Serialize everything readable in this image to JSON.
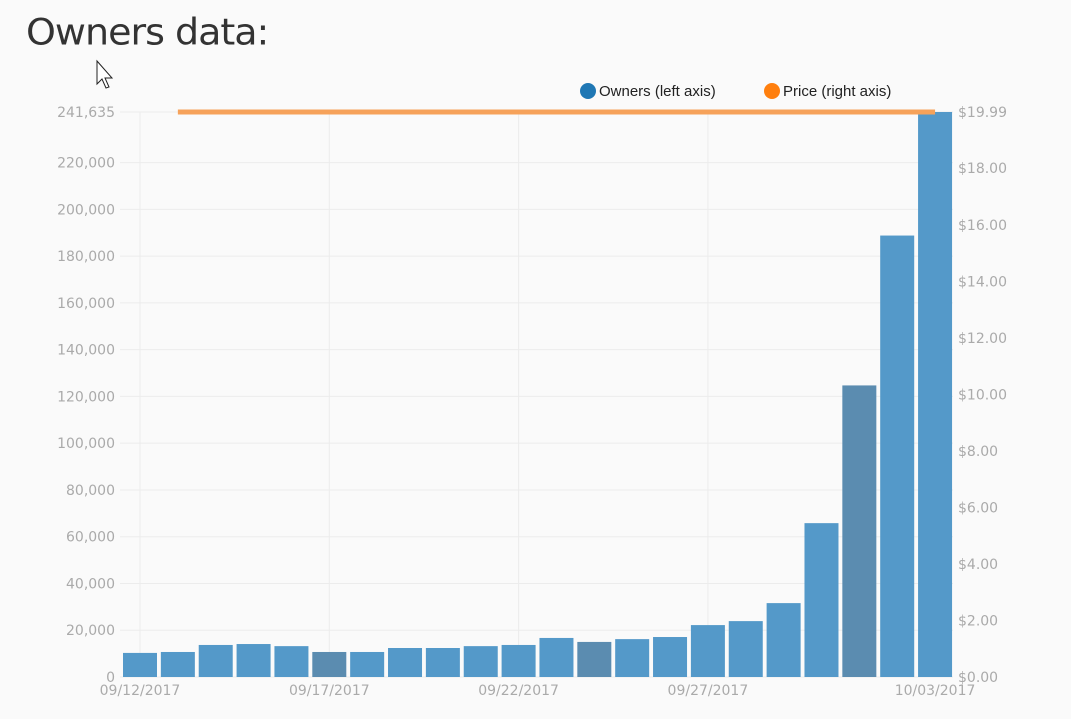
{
  "page_title": "Owners data:",
  "chart_data": {
    "type": "bar",
    "x": [
      "09/12/2017",
      "09/13/2017",
      "09/14/2017",
      "09/15/2017",
      "09/16/2017",
      "09/17/2017",
      "09/18/2017",
      "09/19/2017",
      "09/20/2017",
      "09/21/2017",
      "09/22/2017",
      "09/23/2017",
      "09/24/2017",
      "09/25/2017",
      "09/26/2017",
      "09/27/2017",
      "09/28/2017",
      "09/29/2017",
      "09/30/2017",
      "10/01/2017",
      "10/02/2017",
      "10/03/2017"
    ],
    "x_tick_labels": [
      "09/12/2017",
      "09/17/2017",
      "09/22/2017",
      "09/27/2017",
      "10/03/2017"
    ],
    "series": [
      {
        "name": "Owners (left axis)",
        "type": "bar",
        "axis": "left",
        "color": "#1f77b4",
        "values": [
          10300,
          10700,
          13700,
          14100,
          13200,
          10700,
          10700,
          12400,
          12400,
          13200,
          13700,
          16700,
          15000,
          16200,
          17100,
          22200,
          23900,
          31600,
          65800,
          124700,
          188800,
          241635
        ]
      },
      {
        "name": "Price (right axis)",
        "type": "line",
        "axis": "right",
        "color": "#ff7f0e",
        "values": [
          null,
          19.99,
          19.99,
          19.99,
          19.99,
          19.99,
          19.99,
          19.99,
          19.99,
          19.99,
          19.99,
          19.99,
          19.99,
          19.99,
          19.99,
          19.99,
          19.99,
          19.99,
          19.99,
          19.99,
          19.99,
          19.99
        ]
      }
    ],
    "y_left": {
      "range": [
        0,
        241635
      ],
      "tick_labels": [
        "0",
        "20,000",
        "40,000",
        "60,000",
        "80,000",
        "100,000",
        "120,000",
        "140,000",
        "160,000",
        "180,000",
        "200,000",
        "220,000",
        "241,635"
      ]
    },
    "y_right": {
      "range": [
        0,
        19.99
      ],
      "tick_labels": [
        "$0.00",
        "$2.00",
        "$4.00",
        "$6.00",
        "$8.00",
        "$10.00",
        "$12.00",
        "$14.00",
        "$16.00",
        "$18.00",
        "$19.99"
      ]
    },
    "grid": true,
    "legend_placement": "top-right"
  }
}
